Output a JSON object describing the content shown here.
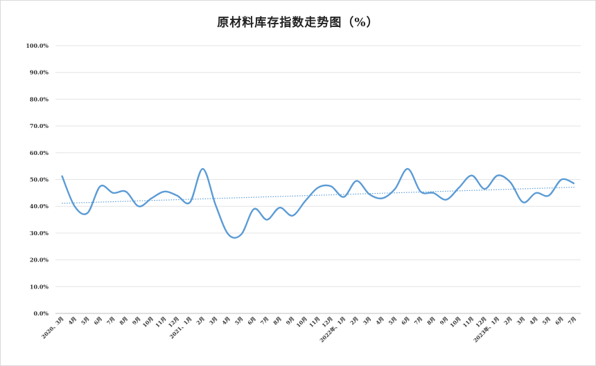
{
  "chart_data": {
    "type": "line",
    "title": "原材料库存指数走势图（%）",
    "xlabel": "",
    "ylabel": "",
    "ylim": [
      0,
      100
    ],
    "y_ticks": [
      "0.0%",
      "10.0%",
      "20.0%",
      "30.0%",
      "40.0%",
      "50.0%",
      "60.0%",
      "70.0%",
      "80.0%",
      "90.0%",
      "100.0%"
    ],
    "categories": [
      "2020、3月",
      "4月",
      "5月",
      "6月",
      "7月",
      "8月",
      "9月",
      "10月",
      "11月",
      "12月",
      "2021、1月",
      "2月",
      "3月",
      "4月",
      "5月",
      "6月",
      "7月",
      "8月",
      "9月",
      "10月",
      "11月",
      "12月",
      "2022年、1月",
      "2月",
      "3月",
      "4月",
      "5月",
      "6月",
      "7月",
      "8月",
      "9月",
      "10月",
      "11月",
      "12月",
      "2023年、1月",
      "2月",
      "3月",
      "4月",
      "5月",
      "6月",
      "7月"
    ],
    "series": [
      {
        "name": "",
        "color": "#5b9bd5",
        "values": [
          51.5,
          40,
          37.5,
          47.5,
          45,
          45.5,
          40,
          43,
          45.5,
          44,
          41.5,
          54,
          40.5,
          29.5,
          29.5,
          39,
          35,
          39.5,
          36.5,
          42,
          47,
          47.5,
          43.5,
          49.5,
          44.5,
          43,
          46.5,
          54,
          45.5,
          45,
          42.5,
          47,
          51.5,
          46.5,
          51.5,
          49,
          41.5,
          45,
          44,
          50,
          48.5
        ]
      }
    ],
    "trendline": {
      "type": "linear",
      "color": "#5b9bd5",
      "style": "dotted"
    },
    "grid": true,
    "legend": "none"
  }
}
